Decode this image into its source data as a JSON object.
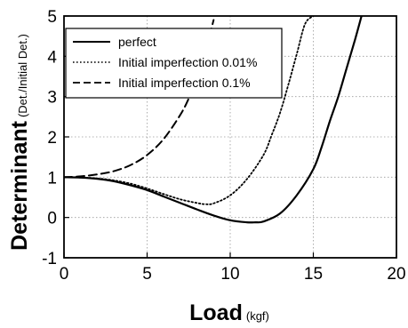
{
  "chart_data": {
    "type": "line",
    "title": "",
    "xlabel": "Load",
    "xlabel_unit": "(kgf)",
    "ylabel": "Determinant",
    "ylabel_unit": "(Det./Initial Det.)",
    "xlim": [
      0,
      20
    ],
    "ylim": [
      -1,
      5
    ],
    "xticks": [
      0,
      5,
      10,
      15,
      20
    ],
    "yticks": [
      -1,
      0,
      1,
      2,
      3,
      4,
      5
    ],
    "xtick_labels": [
      "0",
      "5",
      "10",
      "15",
      "20"
    ],
    "ytick_labels": [
      "-1",
      "0",
      "1",
      "2",
      "3",
      "4",
      "5"
    ],
    "grid": true,
    "legend_position": "top-left",
    "series": [
      {
        "name": "perfect",
        "line_style": "solid",
        "x": [
          0,
          1,
          2,
          3,
          4,
          5,
          6,
          7,
          8,
          9,
          10,
          11,
          11.5,
          12,
          13,
          14,
          15,
          15.5,
          16,
          16.5,
          17,
          17.5,
          17.9
        ],
        "y": [
          1.0,
          0.99,
          0.96,
          0.9,
          0.8,
          0.68,
          0.52,
          0.36,
          0.2,
          0.05,
          -0.07,
          -0.12,
          -0.12,
          -0.1,
          0.1,
          0.55,
          1.2,
          1.75,
          2.4,
          3.0,
          3.7,
          4.4,
          5.0
        ]
      },
      {
        "name": "Initial imperfection 0.01%",
        "line_style": "dotted",
        "x": [
          0,
          1,
          2,
          3,
          4,
          5,
          6,
          7,
          8,
          8.5,
          9,
          10,
          11,
          12,
          12.5,
          13,
          13.5,
          14,
          14.5,
          15
        ],
        "y": [
          1.0,
          0.99,
          0.97,
          0.92,
          0.84,
          0.72,
          0.58,
          0.45,
          0.36,
          0.33,
          0.35,
          0.55,
          0.95,
          1.55,
          2.05,
          2.6,
          3.3,
          4.05,
          4.8,
          5.0
        ]
      },
      {
        "name": "Initial imperfection 0.1%",
        "line_style": "dashed",
        "x": [
          0,
          1,
          2,
          3,
          4,
          5,
          6,
          7,
          7.5,
          8,
          8.5,
          9
        ],
        "y": [
          1.0,
          1.02,
          1.07,
          1.15,
          1.3,
          1.55,
          1.95,
          2.55,
          2.95,
          3.45,
          4.1,
          4.9
        ]
      }
    ]
  }
}
